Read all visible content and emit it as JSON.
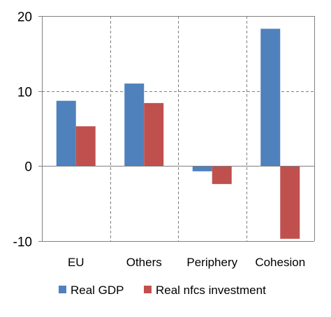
{
  "chart_data": {
    "type": "bar",
    "categories": [
      "EU",
      "Others",
      "Periphery",
      "Cohesion"
    ],
    "series": [
      {
        "name": "Real GDP",
        "values": [
          8.7,
          11.0,
          -0.7,
          18.3
        ]
      },
      {
        "name": "Real nfcs investment",
        "values": [
          5.3,
          8.4,
          -2.4,
          -9.7
        ]
      }
    ],
    "ylim": [
      -10,
      20
    ],
    "yticks": [
      "-10",
      "0",
      "10",
      "20"
    ],
    "grid": true,
    "legend": "bottom",
    "colors": [
      "#4f81bd",
      "#c0504d"
    ]
  }
}
